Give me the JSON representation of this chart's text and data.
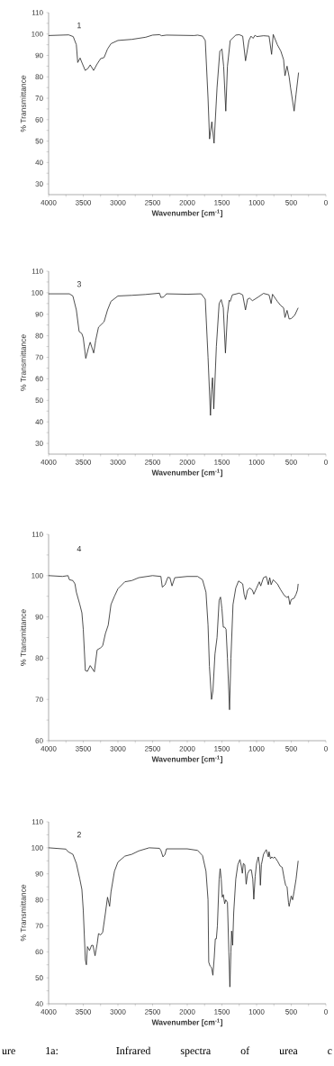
{
  "chart_data": [
    {
      "type": "line",
      "xlabel": "Wavenumber [cm$^{-1}$]",
      "ylabel": "% Transmittance",
      "annotations": [
        "1"
      ],
      "color": "#222222",
      "marker": "none",
      "line_style": "solid",
      "xlim": [
        4000,
        0
      ],
      "ylim": [
        25,
        110
      ],
      "xticks": [
        4000,
        {
          "value": 3750,
          "label": null
        },
        3500,
        {
          "value": 3250,
          "label": null
        },
        3000,
        {
          "value": 2750,
          "label": null
        },
        2500,
        {
          "value": 2250,
          "label": null
        },
        2000,
        {
          "value": 1750,
          "label": null
        },
        1500,
        {
          "value": 1250,
          "label": null
        },
        1000,
        {
          "value": 750,
          "label": null
        },
        500,
        {
          "value": 250,
          "label": null
        },
        0
      ],
      "yticks": [
        30,
        {
          "value": 35,
          "label": null
        },
        40,
        {
          "value": 45,
          "label": null
        },
        50,
        {
          "value": 55,
          "label": null
        },
        60,
        {
          "value": 65,
          "label": null
        },
        70,
        {
          "value": 75,
          "label": null
        },
        80,
        {
          "value": 85,
          "label": null
        },
        90,
        {
          "value": 95,
          "label": null
        },
        100,
        {
          "value": 105,
          "label": null
        },
        110
      ],
      "x": [
        4000,
        3710,
        3645,
        3600,
        3580,
        3546,
        3516,
        3472,
        3430,
        3400,
        3351,
        3300,
        3250,
        3200,
        3150,
        3100,
        3000,
        2800,
        2700,
        2600,
        2500,
        2400,
        2370,
        2300,
        1900,
        1850,
        1780,
        1740,
        1700,
        1678,
        1645,
        1613,
        1570,
        1530,
        1500,
        1475,
        1444,
        1420,
        1380,
        1300,
        1250,
        1200,
        1159,
        1110,
        1080,
        1050,
        1020,
        1000,
        900,
        820,
        783,
        760,
        700,
        650,
        610,
        590,
        560,
        530,
        510,
        458,
        430,
        394
      ],
      "values": [
        99.3,
        99.6,
        98.8,
        95,
        86.7,
        88.8,
        86.4,
        83,
        84,
        85.6,
        83,
        86,
        88.5,
        89,
        93,
        95.5,
        97,
        97.5,
        98,
        98.5,
        99.5,
        99.7,
        99.2,
        99.5,
        99.3,
        99.5,
        99,
        97,
        70,
        51,
        59,
        49,
        75,
        92,
        93,
        85,
        64,
        85,
        97,
        99.5,
        99.7,
        99,
        87.5,
        97,
        99,
        98,
        99.5,
        98.8,
        99.2,
        99,
        90.5,
        99.8,
        95,
        92,
        88,
        80.5,
        85,
        80,
        75,
        64,
        72,
        82
      ]
    },
    {
      "type": "line",
      "xlabel": "Wavenumber [cm$^{-1}$]",
      "ylabel": "% Transmittance",
      "annotations": [
        "3"
      ],
      "color": "#222222",
      "marker": "none",
      "line_style": "solid",
      "xlim": [
        4000,
        0
      ],
      "ylim": [
        25,
        110
      ],
      "xticks": [
        4000,
        {
          "value": 3750,
          "label": null
        },
        3500,
        {
          "value": 3250,
          "label": null
        },
        3000,
        {
          "value": 2750,
          "label": null
        },
        2500,
        {
          "value": 2250,
          "label": null
        },
        2000,
        {
          "value": 1750,
          "label": null
        },
        1500,
        {
          "value": 1250,
          "label": null
        },
        1000,
        {
          "value": 750,
          "label": null
        },
        500,
        {
          "value": 250,
          "label": null
        },
        0
      ],
      "yticks": [
        30,
        {
          "value": 35,
          "label": null
        },
        40,
        {
          "value": 45,
          "label": null
        },
        50,
        {
          "value": 55,
          "label": null
        },
        60,
        {
          "value": 65,
          "label": null
        },
        70,
        {
          "value": 75,
          "label": null
        },
        80,
        {
          "value": 85,
          "label": null
        },
        90,
        {
          "value": 95,
          "label": null
        },
        100,
        {
          "value": 105,
          "label": null
        },
        110
      ],
      "x": [
        4000,
        3700,
        3650,
        3600,
        3560,
        3520,
        3500,
        3464,
        3420,
        3400,
        3370,
        3350,
        3320,
        3280,
        3200,
        3150,
        3100,
        3000,
        2800,
        2600,
        2400,
        2380,
        2340,
        2300,
        2000,
        1800,
        1740,
        1700,
        1665,
        1650,
        1635,
        1617,
        1580,
        1540,
        1510,
        1480,
        1449,
        1420,
        1395,
        1380,
        1350,
        1250,
        1200,
        1160,
        1130,
        1100,
        1060,
        1000,
        900,
        820,
        790,
        770,
        700,
        650,
        610,
        590,
        560,
        530,
        500,
        450,
        400
      ],
      "values": [
        99.5,
        99.5,
        98.5,
        92,
        82,
        81,
        79,
        69.5,
        75,
        77,
        74,
        72,
        78,
        84,
        86.5,
        92,
        96,
        98.5,
        98.8,
        99.2,
        99.8,
        97.8,
        98,
        99.5,
        99.3,
        99.5,
        97,
        70,
        43,
        55,
        60.5,
        46,
        75,
        95,
        96.8,
        93,
        72,
        90,
        96.5,
        96,
        99,
        99.8,
        99,
        92,
        97,
        97.5,
        96.3,
        97.5,
        99.7,
        99,
        95,
        99.3,
        96,
        94,
        93,
        88.5,
        91.8,
        87.8,
        88,
        89.5,
        93
      ]
    },
    {
      "type": "line",
      "xlabel": "Wavenumber [cm$^{-1}$]",
      "ylabel": "% Ttansmittance",
      "annotations": [
        "4"
      ],
      "color": "#222222",
      "marker": "none",
      "line_style": "solid",
      "xlim": [
        4000,
        0
      ],
      "ylim": [
        60,
        110
      ],
      "xticks": [
        4000,
        {
          "value": 3750,
          "label": null
        },
        3500,
        {
          "value": 3250,
          "label": null
        },
        3000,
        {
          "value": 2750,
          "label": null
        },
        2500,
        {
          "value": 2250,
          "label": null
        },
        2000,
        {
          "value": 1750,
          "label": null
        },
        1500,
        {
          "value": 1250,
          "label": null
        },
        1000,
        {
          "value": 750,
          "label": null
        },
        500,
        {
          "value": 250,
          "label": null
        },
        0
      ],
      "yticks": [
        60,
        {
          "value": 65,
          "label": null
        },
        70,
        {
          "value": 75,
          "label": null
        },
        80,
        {
          "value": 85,
          "label": null
        },
        90,
        {
          "value": 95,
          "label": null
        },
        100,
        {
          "value": 105,
          "label": null
        },
        110
      ],
      "x": [
        4000,
        3800,
        3720,
        3700,
        3650,
        3620,
        3600,
        3550,
        3520,
        3500,
        3470,
        3440,
        3400,
        3340,
        3300,
        3250,
        3220,
        3180,
        3140,
        3100,
        3050,
        3000,
        2900,
        2800,
        2700,
        2500,
        2380,
        2360,
        2320,
        2280,
        2250,
        2220,
        2180,
        2000,
        1850,
        1780,
        1730,
        1700,
        1680,
        1650,
        1630,
        1600,
        1570,
        1540,
        1520,
        1500,
        1480,
        1460,
        1440,
        1420,
        1390,
        1370,
        1340,
        1300,
        1260,
        1200,
        1180,
        1160,
        1130,
        1100,
        1060,
        1040,
        1000,
        960,
        940,
        900,
        860,
        830,
        810,
        790,
        760,
        700,
        650,
        600,
        560,
        540,
        520,
        500,
        460,
        430,
        410,
        400
      ],
      "values": [
        100,
        99.8,
        100,
        99,
        98.8,
        98,
        96,
        93,
        91,
        87,
        77,
        76.8,
        78.2,
        76.7,
        82,
        82.5,
        83,
        86,
        88,
        93,
        95,
        96.8,
        98.5,
        98.8,
        99.5,
        100,
        99.8,
        97.2,
        97.8,
        99.6,
        99.5,
        97.5,
        99.5,
        99.8,
        99.8,
        99,
        96,
        88,
        78,
        70,
        72,
        81,
        85,
        94,
        94.8,
        92,
        87.5,
        87.5,
        87,
        80,
        67.5,
        80,
        93,
        97,
        98.7,
        98,
        95.5,
        94.2,
        96.5,
        97,
        96.5,
        95.5,
        97,
        98.5,
        97.5,
        99.5,
        99.8,
        97.8,
        99.5,
        97.8,
        99,
        98,
        96.5,
        95.2,
        94.7,
        95,
        93,
        94.2,
        94.5,
        95.5,
        96.5,
        98
      ]
    },
    {
      "type": "line",
      "xlabel": "Wavenumber [cm$^{-1}$]",
      "ylabel": "% Transmittance",
      "annotations": [
        "2",
        "ure 1a: Infrared spectra of urea c"
      ],
      "color": "#222222",
      "marker": "none",
      "line_style": "solid",
      "xlim": [
        4000,
        0
      ],
      "ylim": [
        40,
        110
      ],
      "xticks": [
        4000,
        {
          "value": 3750,
          "label": null
        },
        3500,
        {
          "value": 3250,
          "label": null
        },
        3000,
        {
          "value": 2750,
          "label": null
        },
        2500,
        {
          "value": 2250,
          "label": null
        },
        2000,
        {
          "value": 1750,
          "label": null
        },
        1500,
        {
          "value": 1250,
          "label": null
        },
        1000,
        {
          "value": 750,
          "label": null
        },
        500,
        {
          "value": 250,
          "label": null
        },
        0
      ],
      "yticks": [
        40,
        {
          "value": 45,
          "label": null
        },
        50,
        {
          "value": 55,
          "label": null
        },
        60,
        {
          "value": 65,
          "label": null
        },
        70,
        {
          "value": 75,
          "label": null
        },
        80,
        {
          "value": 85,
          "label": null
        },
        90,
        {
          "value": 95,
          "label": null
        },
        100,
        {
          "value": 105,
          "label": null
        },
        110
      ],
      "x": [
        4000,
        3750,
        3720,
        3650,
        3600,
        3550,
        3520,
        3500,
        3470,
        3455,
        3440,
        3410,
        3380,
        3360,
        3330,
        3300,
        3280,
        3250,
        3220,
        3180,
        3150,
        3120,
        3100,
        3050,
        3000,
        2900,
        2800,
        2700,
        2550,
        2400,
        2380,
        2350,
        2320,
        2300,
        2000,
        1850,
        1780,
        1730,
        1700,
        1690,
        1670,
        1650,
        1630,
        1610,
        1595,
        1580,
        1565,
        1540,
        1525,
        1510,
        1495,
        1480,
        1460,
        1445,
        1420,
        1400,
        1385,
        1370,
        1360,
        1345,
        1330,
        1300,
        1270,
        1240,
        1220,
        1205,
        1190,
        1170,
        1150,
        1130,
        1100,
        1075,
        1055,
        1040,
        1020,
        1000,
        975,
        955,
        945,
        930,
        900,
        860,
        830,
        820,
        800,
        780,
        760,
        740,
        700,
        660,
        630,
        600,
        580,
        560,
        540,
        530,
        500,
        480,
        460,
        430,
        400
      ],
      "values": [
        100,
        99.5,
        98.5,
        97.5,
        94,
        88,
        84,
        76,
        57,
        55,
        62,
        60.5,
        62.5,
        62.5,
        58.5,
        63,
        67,
        66.5,
        67.5,
        75,
        81,
        77.5,
        83,
        91,
        94.5,
        96.8,
        97.5,
        98.8,
        100,
        99.8,
        99,
        96.5,
        97.5,
        99.6,
        99.6,
        99,
        97,
        91,
        80,
        56,
        54.5,
        54,
        51,
        58,
        65,
        65,
        70,
        88,
        92,
        88,
        81,
        82,
        78.5,
        80,
        79,
        60,
        46.5,
        60,
        68,
        62.5,
        75,
        88,
        93.5,
        95.5,
        93,
        90.2,
        94,
        93.5,
        86,
        90,
        91.5,
        91.5,
        88,
        80.2,
        89,
        94,
        96.5,
        93,
        85.6,
        93.5,
        97.5,
        99.3,
        96.5,
        98.5,
        95.8,
        96.5,
        96,
        96.5,
        95,
        93,
        92.5,
        88,
        85.5,
        85,
        79,
        77.5,
        81.5,
        80,
        83,
        88,
        95
      ]
    }
  ]
}
